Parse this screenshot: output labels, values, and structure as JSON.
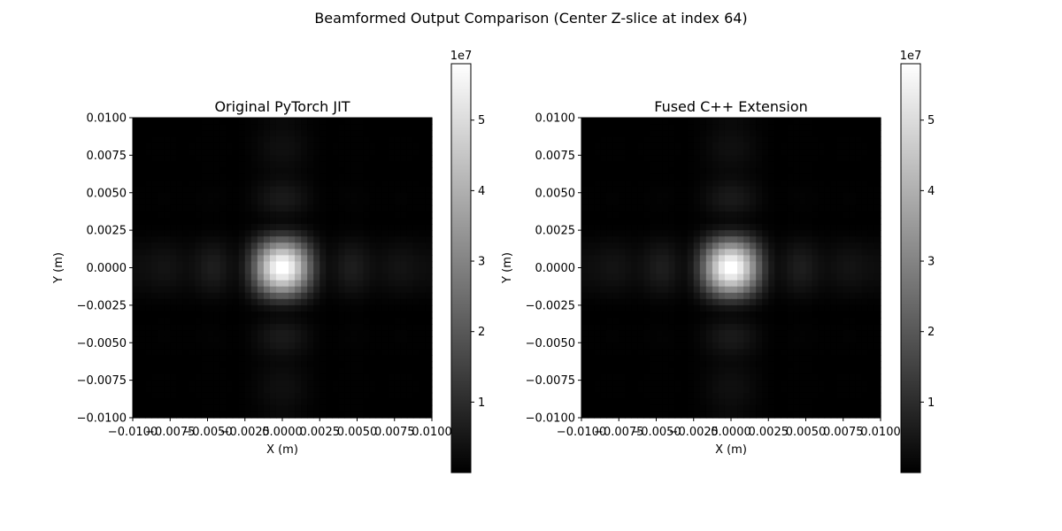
{
  "figure": {
    "suptitle": "Beamformed Output Comparison (Center Z-slice at index 64)"
  },
  "chart_data": [
    {
      "type": "heatmap",
      "title": "Original PyTorch JIT",
      "xlabel": "X (m)",
      "ylabel": "Y (m)",
      "xlim": [
        -0.01,
        0.01
      ],
      "ylim": [
        -0.01,
        0.01
      ],
      "x_ticks": [
        "−0.0100",
        "−0.0075",
        "−0.0050",
        "−0.0025",
        "0.0000",
        "0.0025",
        "0.0050",
        "0.0075",
        "0.0100"
      ],
      "x_tick_values": [
        -0.01,
        -0.0075,
        -0.005,
        -0.0025,
        0,
        0.0025,
        0.005,
        0.0075,
        0.01
      ],
      "y_ticks": [
        "−0.0100",
        "−0.0075",
        "−0.0050",
        "−0.0025",
        "0.0000",
        "0.0025",
        "0.0050",
        "0.0075",
        "0.0100"
      ],
      "y_tick_values": [
        -0.01,
        -0.0075,
        -0.005,
        -0.0025,
        0,
        0.0025,
        0.005,
        0.0075,
        0.01
      ],
      "colormap": "gray",
      "colorbar": {
        "range": [
          0,
          58000000
        ],
        "ticks": [
          10000000,
          20000000,
          30000000,
          40000000,
          50000000
        ],
        "tick_labels": [
          "1",
          "2",
          "3",
          "4",
          "5"
        ],
        "offset_label": "1e7"
      },
      "peak_value": 58000000,
      "peak_location": [
        0,
        0
      ],
      "grid": false
    },
    {
      "type": "heatmap",
      "title": "Fused C++ Extension",
      "xlabel": "X (m)",
      "ylabel": "Y (m)",
      "xlim": [
        -0.01,
        0.01
      ],
      "ylim": [
        -0.01,
        0.01
      ],
      "x_ticks": [
        "−0.0100",
        "−0.0075",
        "−0.0050",
        "−0.0025",
        "0.0000",
        "0.0025",
        "0.0050",
        "0.0075",
        "0.0100"
      ],
      "x_tick_values": [
        -0.01,
        -0.0075,
        -0.005,
        -0.0025,
        0,
        0.0025,
        0.005,
        0.0075,
        0.01
      ],
      "y_ticks": [
        "−0.0100",
        "−0.0075",
        "−0.0050",
        "−0.0025",
        "0.0000",
        "0.0025",
        "0.0050",
        "0.0075",
        "0.0100"
      ],
      "y_tick_values": [
        -0.01,
        -0.0075,
        -0.005,
        -0.0025,
        0,
        0.0025,
        0.005,
        0.0075,
        0.01
      ],
      "colormap": "gray",
      "colorbar": {
        "range": [
          0,
          58000000
        ],
        "ticks": [
          10000000,
          20000000,
          30000000,
          40000000,
          50000000
        ],
        "tick_labels": [
          "1",
          "2",
          "3",
          "4",
          "5"
        ],
        "offset_label": "1e7"
      },
      "peak_value": 58000000,
      "peak_location": [
        0,
        0
      ],
      "grid": false
    }
  ]
}
